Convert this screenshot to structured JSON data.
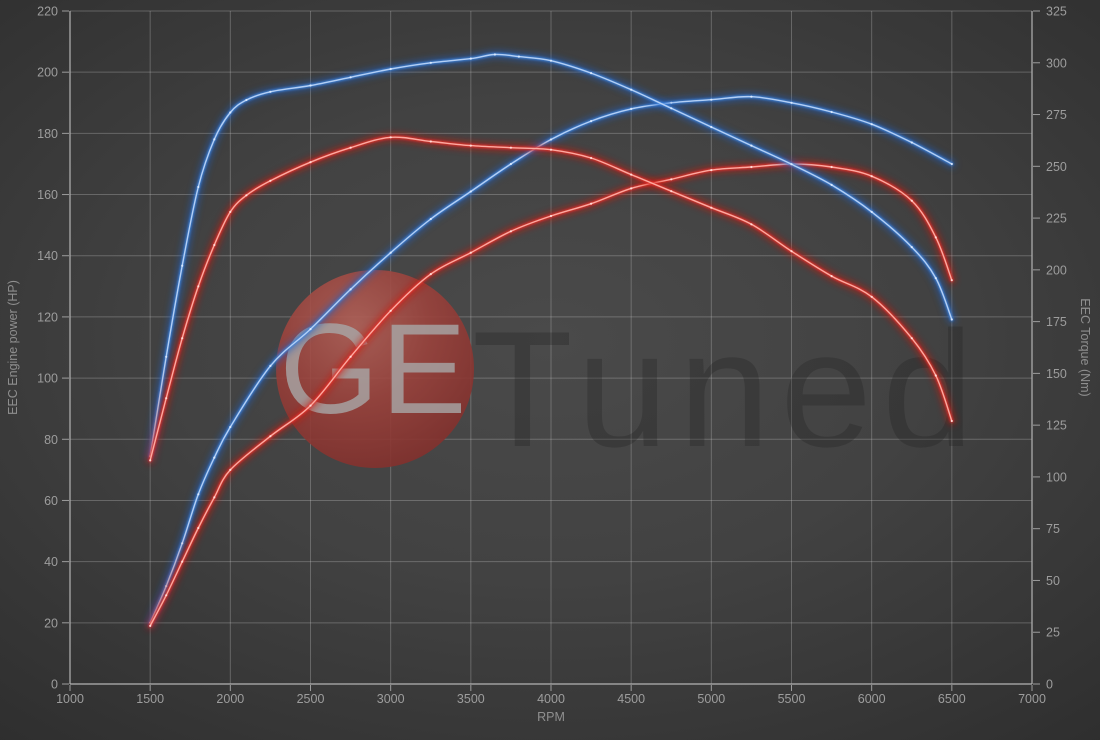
{
  "chart": {
    "xlabel": "RPM",
    "ylabel_left": "EEC Engine power (HP)",
    "ylabel_right": "EEC Torque (Nm)",
    "x_range": [
      1000,
      7000
    ],
    "y_left_range": [
      0,
      220
    ],
    "y_right_range": [
      0,
      325
    ],
    "x_ticks": [
      1000,
      1500,
      2000,
      2500,
      3000,
      3500,
      4000,
      4500,
      5000,
      5500,
      6000,
      6500,
      7000
    ],
    "y_left_ticks": [
      0,
      20,
      40,
      60,
      80,
      100,
      120,
      140,
      160,
      180,
      200,
      220
    ],
    "y_right_ticks": [
      0,
      25,
      50,
      75,
      100,
      125,
      150,
      175,
      200,
      225,
      250,
      275,
      300,
      325
    ],
    "grid": true,
    "legend": "none",
    "watermark": {
      "circle_text": "GE",
      "rest_text": "Tuned"
    },
    "colors": {
      "background_center": "#4a4a4a",
      "background_edge": "#2b2b2b",
      "grid": "#9b9b9b",
      "spine": "#b3b3b3",
      "axis_text": "#9d9d9d",
      "blue_glow": "#1d5fc4",
      "blue_mid": "#3f86e0",
      "blue_core": "#b9d4f8",
      "blue_dot": "#ddebff",
      "red_glow": "#cc1408",
      "red_mid": "#e6342a",
      "red_core": "#ffafa6",
      "red_dot": "#ffdfdb",
      "logo_circle_light": "#b26158",
      "logo_circle_mid": "#9a423c",
      "logo_circle_dark": "#7c2b28",
      "logo_ge_text": "#a8a8a8",
      "logo_tuned_text": "#1e1e1e"
    }
  },
  "chart_data": {
    "type": "line",
    "x_unit": "RPM",
    "series": [
      {
        "name": "power-blue",
        "axis": "left",
        "unit": "HP",
        "color": "blue",
        "peak": {
          "rpm": 5250,
          "value": 192
        },
        "points": [
          [
            1500,
            20
          ],
          [
            1600,
            32
          ],
          [
            1700,
            46
          ],
          [
            1800,
            62
          ],
          [
            1900,
            74
          ],
          [
            2000,
            84
          ],
          [
            2250,
            104
          ],
          [
            2500,
            116
          ],
          [
            2750,
            129
          ],
          [
            3000,
            141
          ],
          [
            3250,
            152
          ],
          [
            3500,
            161
          ],
          [
            3750,
            170
          ],
          [
            4000,
            178
          ],
          [
            4250,
            184
          ],
          [
            4500,
            188
          ],
          [
            4750,
            190
          ],
          [
            5000,
            191
          ],
          [
            5250,
            192
          ],
          [
            5500,
            190
          ],
          [
            5750,
            187
          ],
          [
            6000,
            183
          ],
          [
            6250,
            177
          ],
          [
            6500,
            170
          ]
        ]
      },
      {
        "name": "power-red",
        "axis": "left",
        "unit": "HP",
        "color": "red",
        "peak": {
          "rpm": 5500,
          "value": 170
        },
        "points": [
          [
            1500,
            19
          ],
          [
            1600,
            29
          ],
          [
            1700,
            40
          ],
          [
            1800,
            51
          ],
          [
            1900,
            61
          ],
          [
            2000,
            70
          ],
          [
            2250,
            81
          ],
          [
            2500,
            91
          ],
          [
            2750,
            107
          ],
          [
            3000,
            122
          ],
          [
            3250,
            134
          ],
          [
            3500,
            141
          ],
          [
            3750,
            148
          ],
          [
            4000,
            153
          ],
          [
            4250,
            157
          ],
          [
            4500,
            162
          ],
          [
            4750,
            165
          ],
          [
            5000,
            168
          ],
          [
            5250,
            169
          ],
          [
            5500,
            170
          ],
          [
            5750,
            169
          ],
          [
            6000,
            166
          ],
          [
            6250,
            158
          ],
          [
            6400,
            146
          ],
          [
            6500,
            132
          ]
        ]
      },
      {
        "name": "torque-blue",
        "axis": "right",
        "unit": "Nm",
        "color": "blue",
        "peak": {
          "rpm": 3650,
          "value": 304
        },
        "points": [
          [
            1500,
            110
          ],
          [
            1600,
            158
          ],
          [
            1700,
            202
          ],
          [
            1800,
            240
          ],
          [
            1900,
            263
          ],
          [
            2000,
            276
          ],
          [
            2100,
            282
          ],
          [
            2250,
            286
          ],
          [
            2500,
            289
          ],
          [
            2750,
            293
          ],
          [
            3000,
            297
          ],
          [
            3250,
            300
          ],
          [
            3500,
            302
          ],
          [
            3650,
            304
          ],
          [
            3800,
            303
          ],
          [
            4000,
            301
          ],
          [
            4250,
            295
          ],
          [
            4500,
            287
          ],
          [
            4750,
            278
          ],
          [
            5000,
            269
          ],
          [
            5250,
            260
          ],
          [
            5500,
            251
          ],
          [
            5750,
            241
          ],
          [
            6000,
            228
          ],
          [
            6250,
            211
          ],
          [
            6400,
            196
          ],
          [
            6500,
            176
          ]
        ]
      },
      {
        "name": "torque-red",
        "axis": "right",
        "unit": "Nm",
        "color": "red",
        "peak": {
          "rpm": 3000,
          "value": 264
        },
        "points": [
          [
            1500,
            108
          ],
          [
            1600,
            138
          ],
          [
            1700,
            167
          ],
          [
            1800,
            192
          ],
          [
            1900,
            212
          ],
          [
            2000,
            228
          ],
          [
            2100,
            236
          ],
          [
            2250,
            243
          ],
          [
            2500,
            252
          ],
          [
            2750,
            259
          ],
          [
            3000,
            264
          ],
          [
            3250,
            262
          ],
          [
            3500,
            260
          ],
          [
            3750,
            259
          ],
          [
            4000,
            258
          ],
          [
            4250,
            254
          ],
          [
            4500,
            246
          ],
          [
            4750,
            238
          ],
          [
            5000,
            230
          ],
          [
            5250,
            222
          ],
          [
            5500,
            209
          ],
          [
            5750,
            197
          ],
          [
            6000,
            187
          ],
          [
            6250,
            167
          ],
          [
            6400,
            149
          ],
          [
            6500,
            127
          ]
        ]
      }
    ]
  }
}
